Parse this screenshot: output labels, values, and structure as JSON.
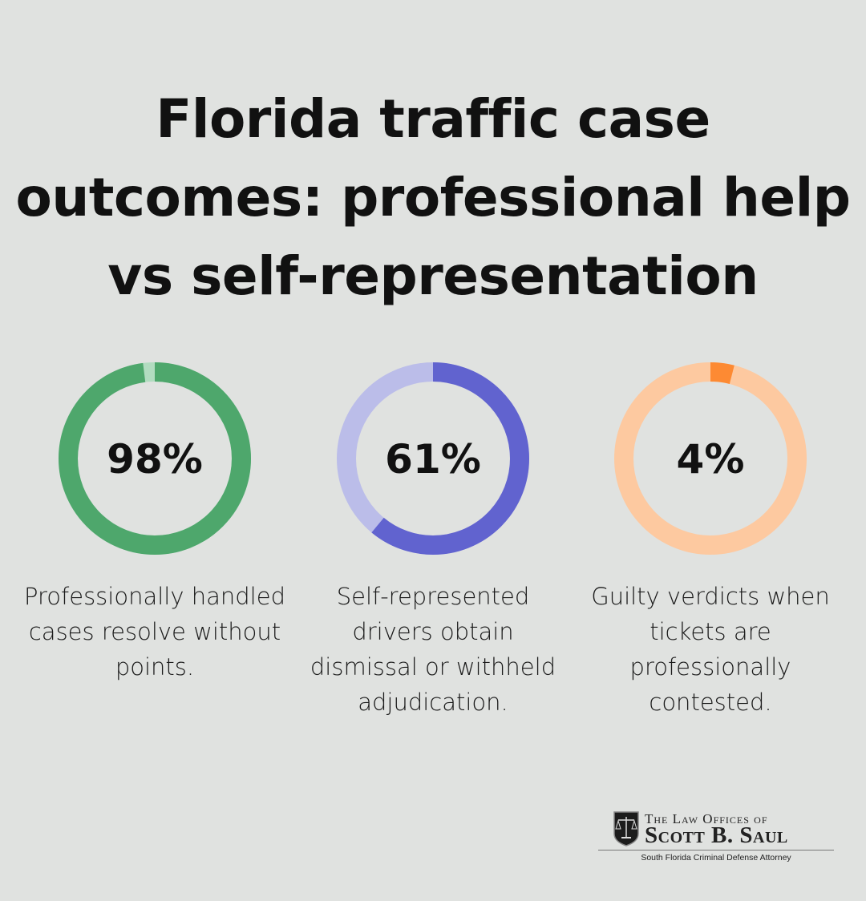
{
  "title": "Florida traffic case outcomes: professional help vs self-representation",
  "chart_data": [
    {
      "type": "pie",
      "variant": "donut",
      "value": 98,
      "label": "98%",
      "description": "Professionally handled cases resolve without points.",
      "colors": {
        "fill": "#4ea76c",
        "rest": "#b2dcc0"
      }
    },
    {
      "type": "pie",
      "variant": "donut",
      "value": 61,
      "label": "61%",
      "description": "Self-represented drivers obtain dismissal or withheld adjudication.",
      "colors": {
        "fill": "#6163cf",
        "rest": "#bbbde9"
      }
    },
    {
      "type": "pie",
      "variant": "donut",
      "value": 4,
      "label": "4%",
      "description": "Guilty verdicts when tickets are professionally contested.",
      "colors": {
        "fill": "#fd8a33",
        "rest": "#fdc9a0"
      }
    }
  ],
  "logo": {
    "line1": "The Law Offices of",
    "line2": "Scott B. Saul",
    "tagline": "South Florida Criminal Defense Attorney"
  }
}
